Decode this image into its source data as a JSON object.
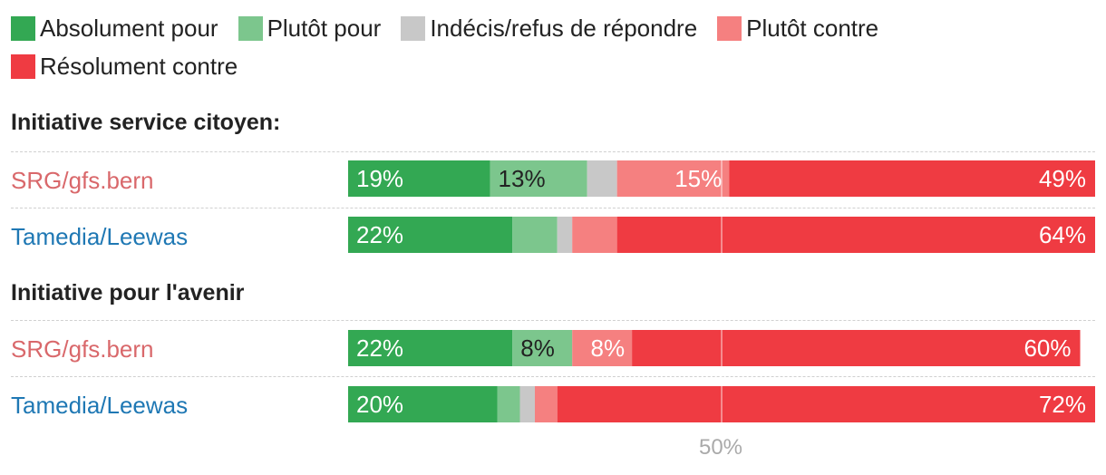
{
  "legend": [
    {
      "label": "Absolument pour",
      "color": "#33a853"
    },
    {
      "label": "Plutôt pour",
      "color": "#7cc68d"
    },
    {
      "label": "Indécis/refus de répondre",
      "color": "#c8c8c8"
    },
    {
      "label": "Plutôt contre",
      "color": "#f58080"
    },
    {
      "label": "Résolument contre",
      "color": "#ef3b42"
    }
  ],
  "sections": [
    {
      "title": "Initiative service citoyen:"
    },
    {
      "title": "Initiative pour l'avenir"
    }
  ],
  "reference_label": "50%",
  "chart_data": {
    "type": "bar",
    "orientation": "horizontal",
    "stacked": true,
    "xlim": [
      0,
      100
    ],
    "reference_line": 50,
    "categories": [
      {
        "group": "Initiative service citoyen:",
        "label": "SRG/gfs.bern",
        "label_color": "#d9686b"
      },
      {
        "group": "Initiative service citoyen:",
        "label": "Tamedia/Leewas",
        "label_color": "#1f78b4"
      },
      {
        "group": "Initiative pour l'avenir",
        "label": "SRG/gfs.bern",
        "label_color": "#d9686b"
      },
      {
        "group": "Initiative pour l'avenir",
        "label": "Tamedia/Leewas",
        "label_color": "#1f78b4"
      }
    ],
    "series": [
      {
        "name": "Absolument pour",
        "color": "#33a853",
        "values": [
          19,
          22,
          22,
          20
        ],
        "labels": [
          "19%",
          "22%",
          "22%",
          "20%"
        ]
      },
      {
        "name": "Plutôt pour",
        "color": "#7cc68d",
        "values": [
          13,
          6,
          8,
          3
        ],
        "labels": [
          "13%",
          "",
          "8%",
          ""
        ]
      },
      {
        "name": "Indécis/refus de répondre",
        "color": "#c8c8c8",
        "values": [
          4,
          2,
          0,
          2
        ],
        "labels": [
          "",
          "",
          "",
          ""
        ]
      },
      {
        "name": "Plutôt contre",
        "color": "#f58080",
        "values": [
          15,
          6,
          8,
          3
        ],
        "labels": [
          "15%",
          "",
          "8%",
          ""
        ]
      },
      {
        "name": "Résolument contre",
        "color": "#ef3b42",
        "values": [
          49,
          64,
          60,
          72
        ],
        "labels": [
          "49%",
          "64%",
          "60%",
          "72%"
        ]
      }
    ]
  }
}
